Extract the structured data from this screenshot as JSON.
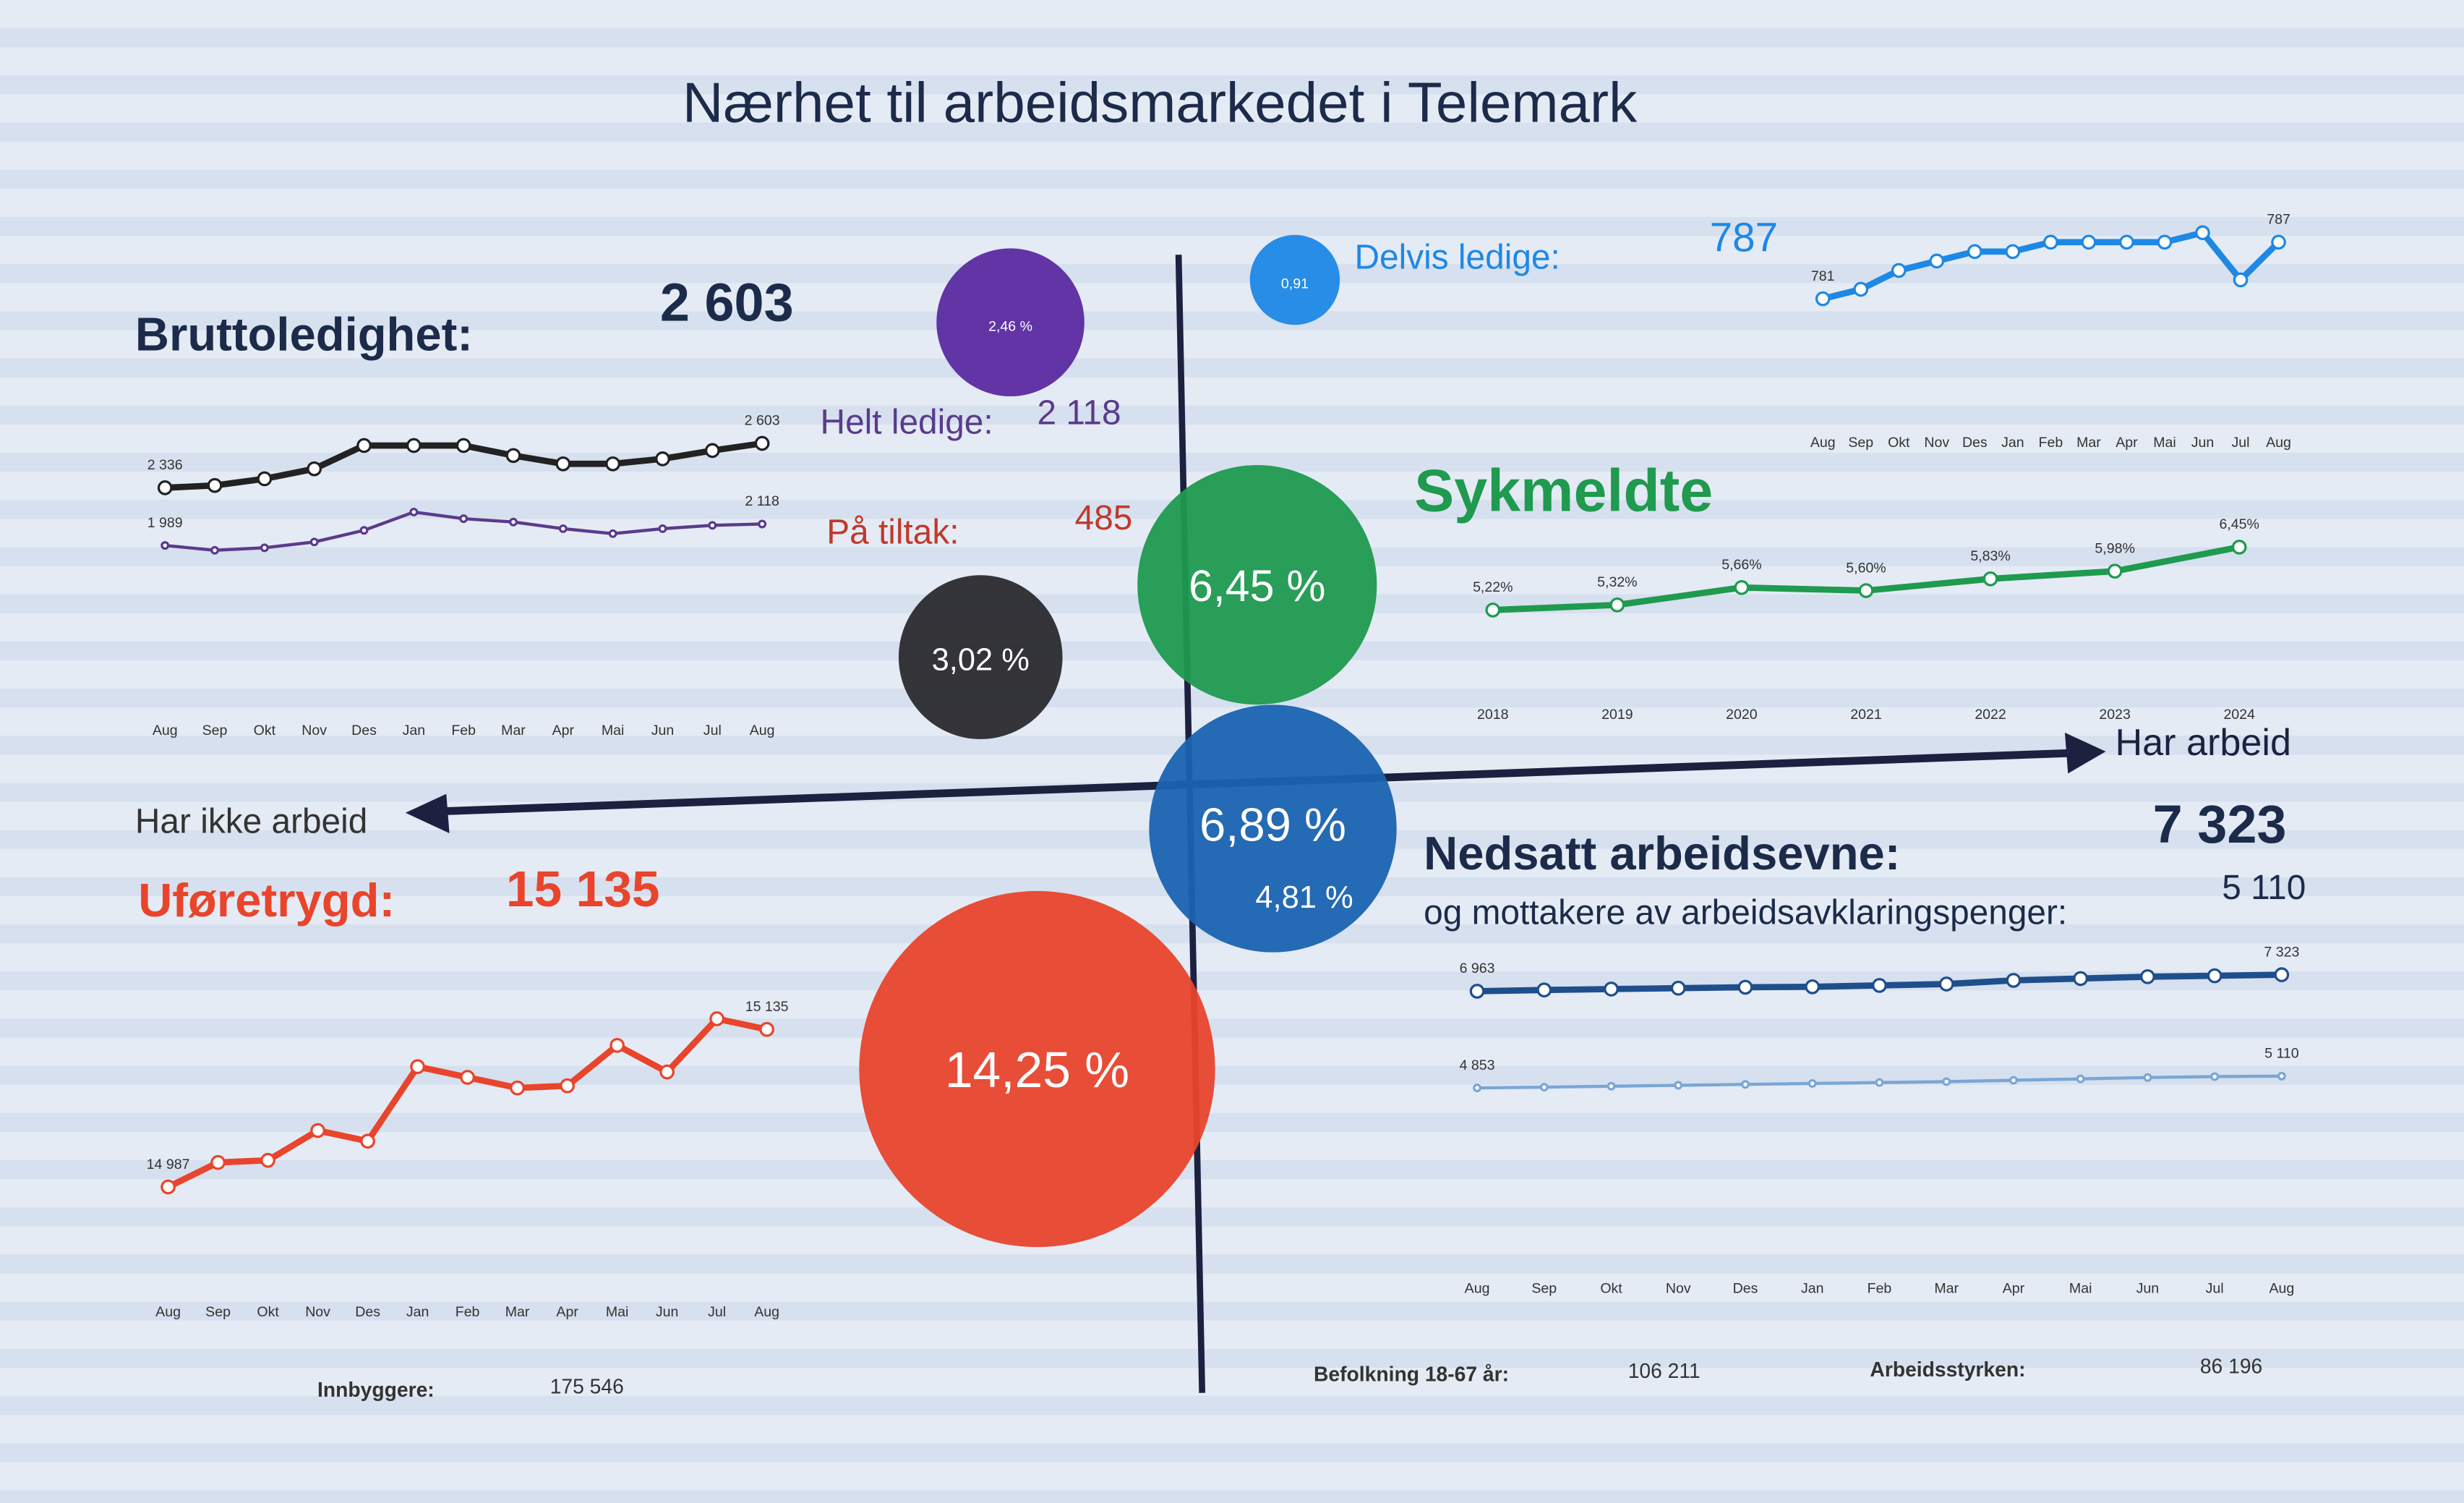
{
  "title": "Nærhet til arbeidsmarkedet i Telemark",
  "axes": {
    "right_label": "Har arbeid",
    "left_label": "Har ikke arbeid"
  },
  "bubbles": [
    {
      "value": 2.46,
      "value_label": "2,46 %",
      "color": "#5b2aa0"
    },
    {
      "value": 0.91,
      "value_label": "0,91",
      "color": "#1e88e5"
    },
    {
      "value": 3.02,
      "value_label": "3,02 %",
      "color": "#2a2a2e"
    },
    {
      "value": 6.45,
      "value_label": "6,45 %",
      "color": "#1f9a4f"
    },
    {
      "value": 6.89,
      "value_label": "6,89 %",
      "color": "#1a63b0",
      "sub_label": "4,81 %"
    },
    {
      "value": 14.25,
      "value_label": "14,25 %",
      "color": "#e8452c"
    }
  ],
  "bruttoledighet": {
    "label": "Bruttoledighet:",
    "total": "2 603",
    "helt_ledige_label": "Helt ledige:",
    "helt_ledige": "2 118",
    "tiltak_label": "På tiltak:",
    "tiltak": "485",
    "categories": [
      "Aug",
      "Sep",
      "Okt",
      "Nov",
      "Des",
      "Jan",
      "Feb",
      "Mar",
      "Apr",
      "Mai",
      "Jun",
      "Jul",
      "Aug"
    ],
    "series": [
      {
        "color": "#222222",
        "values": [
          2336,
          2350,
          2390,
          2450,
          2590,
          2590,
          2590,
          2530,
          2480,
          2480,
          2510,
          2560,
          2603
        ],
        "value_labels": [
          "2 336",
          null,
          null,
          null,
          null,
          null,
          null,
          null,
          null,
          null,
          null,
          null,
          "2 603"
        ]
      },
      {
        "color": "#5b3a8c",
        "values": [
          1989,
          1960,
          1975,
          2010,
          2080,
          2190,
          2150,
          2130,
          2090,
          2060,
          2090,
          2110,
          2118
        ],
        "value_labels": [
          "1 989",
          null,
          null,
          null,
          null,
          null,
          null,
          null,
          null,
          null,
          null,
          null,
          "2 118"
        ]
      }
    ]
  },
  "delvis_ledige": {
    "label": "Delvis ledige:",
    "total": "787",
    "categories": [
      "Aug",
      "Sep",
      "Okt",
      "Nov",
      "Des",
      "Jan",
      "Feb",
      "Mar",
      "Apr",
      "Mai",
      "Jun",
      "Jul",
      "Aug"
    ],
    "series": [
      {
        "color": "#1e88e5",
        "values": [
          781,
          782,
          784,
          785,
          786,
          786,
          787,
          787,
          787,
          787,
          788,
          783,
          787
        ],
        "value_labels": [
          "781",
          null,
          null,
          null,
          null,
          null,
          null,
          null,
          null,
          null,
          null,
          null,
          "787"
        ]
      }
    ]
  },
  "sykmeldte": {
    "label": "Sykmeldte",
    "categories": [
      "2018",
      "2019",
      "2020",
      "2021",
      "2022",
      "2023",
      "2024"
    ],
    "series": [
      {
        "color": "#1f9a4f",
        "values": [
          5.22,
          5.32,
          5.66,
          5.6,
          5.83,
          5.98,
          6.45
        ],
        "value_labels": [
          "5,22%",
          "5,32%",
          "5,66%",
          "5,60%",
          "5,83%",
          "5,98%",
          "6,45%"
        ]
      }
    ]
  },
  "nedsatt_arbeidsevne": {
    "label": "Nedsatt arbeidsevne:",
    "total": "7 323",
    "aap_label": "og mottakere av arbeidsavklaringspenger:",
    "aap": "5 110",
    "categories": [
      "Aug",
      "Sep",
      "Okt",
      "Nov",
      "Des",
      "Jan",
      "Feb",
      "Mar",
      "Apr",
      "Mai",
      "Jun",
      "Jul",
      "Aug"
    ],
    "series": [
      {
        "color": "#1f4e8c",
        "values": [
          6963,
          6990,
          7010,
          7030,
          7050,
          7060,
          7090,
          7120,
          7200,
          7240,
          7280,
          7300,
          7323
        ],
        "value_labels": [
          "6 963",
          null,
          null,
          null,
          null,
          null,
          null,
          null,
          null,
          null,
          null,
          null,
          "7 323"
        ]
      },
      {
        "color": "#7aa6d6",
        "values": [
          4853,
          4870,
          4890,
          4910,
          4930,
          4950,
          4970,
          4990,
          5020,
          5050,
          5080,
          5100,
          5110
        ],
        "value_labels": [
          "4 853",
          null,
          null,
          null,
          null,
          null,
          null,
          null,
          null,
          null,
          null,
          null,
          "5 110"
        ]
      }
    ]
  },
  "uforetrygd": {
    "label": "Uføretrygd:",
    "total": "15 135",
    "categories": [
      "Aug",
      "Sep",
      "Okt",
      "Nov",
      "Des",
      "Jan",
      "Feb",
      "Mar",
      "Apr",
      "Mai",
      "Jun",
      "Jul",
      "Aug"
    ],
    "series": [
      {
        "color": "#e8452c",
        "values": [
          14987,
          15010,
          15012,
          15040,
          15030,
          15100,
          15090,
          15080,
          15082,
          15120,
          15095,
          15145,
          15135
        ],
        "value_labels": [
          "14 987",
          null,
          null,
          null,
          null,
          null,
          null,
          null,
          null,
          null,
          null,
          null,
          "15 135"
        ]
      }
    ]
  },
  "footer": {
    "innbyggere_label": "Innbyggere:",
    "innbyggere": "175 546",
    "befolkning_label": "Befolkning 18-67 år:",
    "befolkning": "106 211",
    "arbeidsstyrken_label": "Arbeidsstyrken:",
    "arbeidsstyrken": "86 196"
  }
}
